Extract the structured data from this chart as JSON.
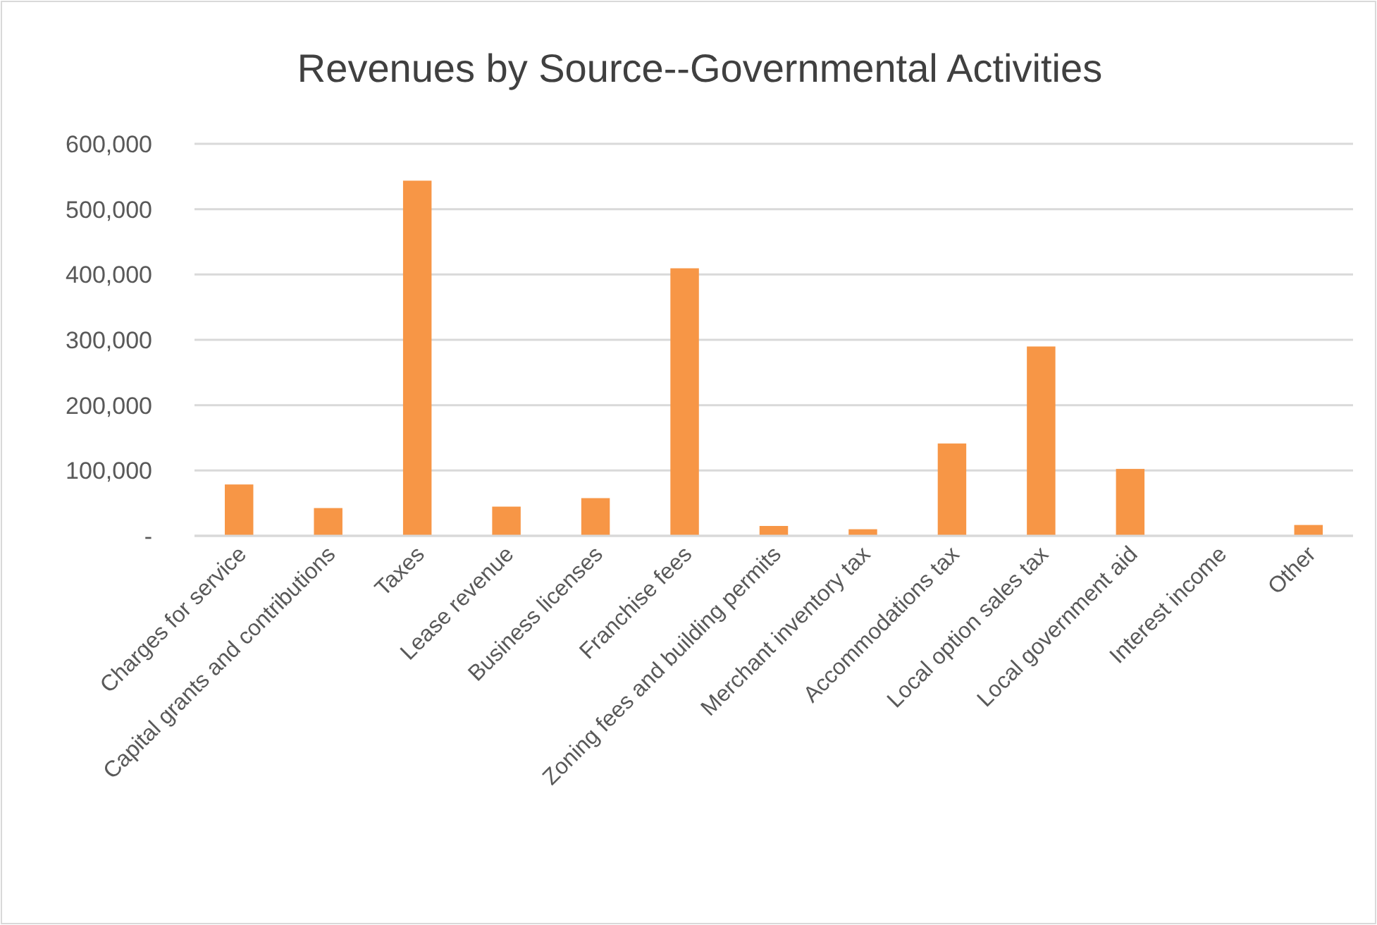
{
  "chart_data": {
    "type": "bar",
    "title": "Revenues by Source--Governmental Activities",
    "categories": [
      "Charges for service",
      "Capital grants and contributions",
      "Taxes",
      "Lease revenue",
      "Business licenses",
      "Franchise fees",
      "Zoning fees and building permits",
      "Merchant inventory tax",
      "Accommodations tax",
      "Local option sales tax",
      "Local government aid",
      "Interest income",
      "Other"
    ],
    "values": [
      78600,
      42500,
      543600,
      44700,
      57700,
      409500,
      15100,
      10100,
      141300,
      289800,
      102400,
      0,
      16600
    ],
    "color": "#f79646",
    "ylim": [
      0,
      600000
    ],
    "yticks": [
      {
        "value": 0,
        "label": "-"
      },
      {
        "value": 100000,
        "label": "100,000"
      },
      {
        "value": 200000,
        "label": "200,000"
      },
      {
        "value": 300000,
        "label": "300,000"
      },
      {
        "value": 400000,
        "label": "400,000"
      },
      {
        "value": 500000,
        "label": "500,000"
      },
      {
        "value": 600000,
        "label": "600,000"
      }
    ],
    "grid": "y"
  }
}
